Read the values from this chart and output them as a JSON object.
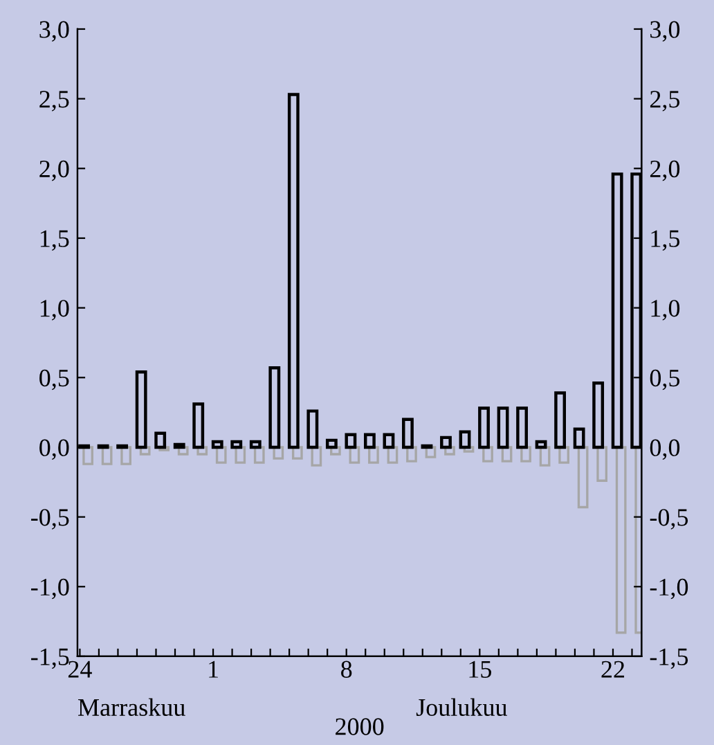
{
  "chart_data": {
    "type": "bar",
    "xlabel": "2000",
    "annotations": [
      "Marraskuu",
      "Joulukuu"
    ],
    "x": [
      "2000-11-24",
      "2000-11-25",
      "2000-11-26",
      "2000-11-27",
      "2000-11-28",
      "2000-11-29",
      "2000-11-30",
      "2000-12-01",
      "2000-12-02",
      "2000-12-03",
      "2000-12-04",
      "2000-12-05",
      "2000-12-06",
      "2000-12-07",
      "2000-12-08",
      "2000-12-09",
      "2000-12-10",
      "2000-12-11",
      "2000-12-12",
      "2000-12-13",
      "2000-12-14",
      "2000-12-15",
      "2000-12-16",
      "2000-12-17",
      "2000-12-18",
      "2000-12-19",
      "2000-12-20",
      "2000-12-21",
      "2000-12-22",
      "2000-12-23"
    ],
    "series": [
      {
        "color": "#000000",
        "values": [
          0.01,
          0.01,
          0.01,
          0.54,
          0.1,
          0.02,
          0.31,
          0.04,
          0.04,
          0.04,
          0.57,
          2.53,
          0.26,
          0.05,
          0.09,
          0.09,
          0.09,
          0.2,
          0.01,
          0.07,
          0.11,
          0.28,
          0.28,
          0.28,
          0.04,
          0.39,
          0.13,
          0.46,
          1.96,
          1.96
        ]
      },
      {
        "color": "#a6a6a6",
        "values": [
          -0.12,
          -0.12,
          -0.12,
          -0.05,
          -0.02,
          -0.05,
          -0.05,
          -0.11,
          -0.11,
          -0.11,
          -0.08,
          -0.08,
          -0.13,
          -0.05,
          -0.11,
          -0.11,
          -0.11,
          -0.1,
          -0.07,
          -0.05,
          -0.03,
          -0.1,
          -0.1,
          -0.1,
          -0.13,
          -0.11,
          -0.43,
          -0.24,
          -1.33,
          -1.33
        ]
      }
    ],
    "xlim": [
      "2000-11-23T21:00",
      "2000-12-23T12:00"
    ],
    "xticks": [
      {
        "value": "2000-11-24",
        "label": "24"
      },
      {
        "value": "2000-11-25",
        "label": null
      },
      {
        "value": "2000-11-26",
        "label": null
      },
      {
        "value": "2000-11-27",
        "label": null
      },
      {
        "value": "2000-11-28",
        "label": null
      },
      {
        "value": "2000-11-29",
        "label": null
      },
      {
        "value": "2000-11-30",
        "label": null
      },
      {
        "value": "2000-12-01",
        "label": "1"
      },
      {
        "value": "2000-12-02",
        "label": null
      },
      {
        "value": "2000-12-03",
        "label": null
      },
      {
        "value": "2000-12-04",
        "label": null
      },
      {
        "value": "2000-12-05",
        "label": null
      },
      {
        "value": "2000-12-06",
        "label": null
      },
      {
        "value": "2000-12-07",
        "label": null
      },
      {
        "value": "2000-12-08",
        "label": "8"
      },
      {
        "value": "2000-12-09",
        "label": null
      },
      {
        "value": "2000-12-10",
        "label": null
      },
      {
        "value": "2000-12-11",
        "label": null
      },
      {
        "value": "2000-12-12",
        "label": null
      },
      {
        "value": "2000-12-13",
        "label": null
      },
      {
        "value": "2000-12-14",
        "label": null
      },
      {
        "value": "2000-12-15",
        "label": "15"
      },
      {
        "value": "2000-12-16",
        "label": null
      },
      {
        "value": "2000-12-17",
        "label": null
      },
      {
        "value": "2000-12-18",
        "label": null
      },
      {
        "value": "2000-12-19",
        "label": null
      },
      {
        "value": "2000-12-20",
        "label": null
      },
      {
        "value": "2000-12-21",
        "label": null
      },
      {
        "value": "2000-12-22",
        "label": "22"
      },
      {
        "value": "2000-12-23",
        "label": null
      }
    ],
    "ylim": [
      -1.5,
      3.0
    ],
    "yticks": [
      {
        "value": -1.5,
        "label": "-1,5"
      },
      {
        "value": -1.0,
        "label": "-1,0"
      },
      {
        "value": -0.5,
        "label": "-0,5"
      },
      {
        "value": 0.0,
        "label": "0,0"
      },
      {
        "value": 0.5,
        "label": "0,5"
      },
      {
        "value": 1.0,
        "label": "1,0"
      },
      {
        "value": 1.5,
        "label": "1,5"
      },
      {
        "value": 2.0,
        "label": "2,0"
      },
      {
        "value": 2.5,
        "label": "2,5"
      },
      {
        "value": 3.0,
        "label": "3,0"
      }
    ],
    "y2lim": [
      -1.5,
      3.0
    ],
    "y2ticks": [
      {
        "value": -1.5,
        "label": "-1,5"
      },
      {
        "value": -1.0,
        "label": "-1,0"
      },
      {
        "value": -0.5,
        "label": "-0,5"
      },
      {
        "value": 0.0,
        "label": "0,0"
      },
      {
        "value": 0.5,
        "label": "0,5"
      },
      {
        "value": 1.0,
        "label": "1,0"
      },
      {
        "value": 1.5,
        "label": "1,5"
      },
      {
        "value": 2.0,
        "label": "2,0"
      },
      {
        "value": 2.5,
        "label": "2,5"
      },
      {
        "value": 3.0,
        "label": "3,0"
      }
    ],
    "grid": false,
    "legend": false
  }
}
